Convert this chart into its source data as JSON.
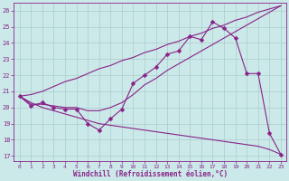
{
  "xlabel": "Windchill (Refroidissement éolien,°C)",
  "xlim_min": -0.5,
  "xlim_max": 23.5,
  "ylim_min": 16.7,
  "ylim_max": 26.5,
  "yticks": [
    17,
    18,
    19,
    20,
    21,
    22,
    23,
    24,
    25,
    26
  ],
  "xticks": [
    0,
    1,
    2,
    3,
    4,
    5,
    6,
    7,
    8,
    9,
    10,
    11,
    12,
    13,
    14,
    15,
    16,
    17,
    18,
    19,
    20,
    21,
    22,
    23
  ],
  "bg_color": "#cce9e9",
  "line_color": "#882288",
  "grid_color": "#aacccc",
  "line1_x": [
    0,
    1,
    2,
    3,
    4,
    5,
    6,
    7,
    8,
    9,
    10,
    11,
    12,
    13,
    14,
    15,
    16,
    17,
    18,
    19,
    20,
    21,
    22,
    23
  ],
  "line1_y": [
    20.7,
    20.1,
    20.3,
    20.0,
    19.9,
    19.9,
    19.0,
    18.6,
    19.3,
    19.9,
    21.5,
    22.0,
    22.5,
    23.3,
    23.5,
    24.4,
    24.2,
    25.3,
    24.9,
    24.3,
    22.1,
    22.1,
    18.4,
    17.1
  ],
  "line2_x": [
    0,
    1,
    2,
    3,
    4,
    5,
    6,
    7,
    8,
    9,
    10,
    11,
    12,
    13,
    14,
    15,
    16,
    17,
    18,
    19,
    20,
    21,
    22,
    23
  ],
  "line2_y": [
    20.7,
    20.8,
    21.0,
    21.3,
    21.6,
    21.8,
    22.1,
    22.4,
    22.6,
    22.9,
    23.1,
    23.4,
    23.6,
    23.9,
    24.1,
    24.4,
    24.6,
    24.9,
    25.1,
    25.4,
    25.6,
    25.9,
    26.1,
    26.3
  ],
  "line3_x": [
    0,
    1,
    2,
    3,
    4,
    5,
    6,
    7,
    8,
    9,
    10,
    11,
    12,
    13,
    14,
    15,
    16,
    17,
    18,
    19,
    20,
    21,
    22,
    23
  ],
  "line3_y": [
    20.7,
    20.2,
    20.2,
    20.1,
    20.0,
    20.0,
    19.8,
    19.8,
    20.0,
    20.3,
    20.8,
    21.4,
    21.8,
    22.3,
    22.7,
    23.1,
    23.5,
    23.9,
    24.3,
    24.7,
    25.1,
    25.5,
    25.9,
    26.3
  ],
  "line4_x": [
    0,
    1,
    2,
    3,
    4,
    5,
    6,
    7,
    8,
    9,
    10,
    11,
    12,
    13,
    14,
    15,
    16,
    17,
    18,
    19,
    20,
    21,
    22,
    23
  ],
  "line4_y": [
    20.7,
    20.3,
    20.0,
    19.8,
    19.6,
    19.4,
    19.2,
    19.0,
    18.9,
    18.8,
    18.7,
    18.6,
    18.5,
    18.4,
    18.3,
    18.2,
    18.1,
    18.0,
    17.9,
    17.8,
    17.7,
    17.6,
    17.4,
    17.1
  ]
}
